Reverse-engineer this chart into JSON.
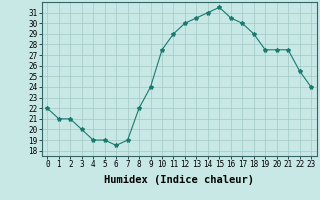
{
  "x": [
    0,
    1,
    2,
    3,
    4,
    5,
    6,
    7,
    8,
    9,
    10,
    11,
    12,
    13,
    14,
    15,
    16,
    17,
    18,
    19,
    20,
    21,
    22,
    23
  ],
  "y": [
    22,
    21,
    21,
    20,
    19,
    19,
    18.5,
    19,
    22,
    24,
    27.5,
    29,
    30,
    30.5,
    31,
    31.5,
    30.5,
    30,
    29,
    27.5,
    27.5,
    27.5,
    25.5,
    24
  ],
  "line_color": "#1a7a6e",
  "marker": "*",
  "marker_size": 3,
  "bg_color": "#c8e8e5",
  "grid_color": "#a0c8c5",
  "xlabel": "Humidex (Indice chaleur)",
  "ylim": [
    17.5,
    32
  ],
  "xlim": [
    -0.5,
    23.5
  ],
  "yticks": [
    18,
    19,
    20,
    21,
    22,
    23,
    24,
    25,
    26,
    27,
    28,
    29,
    30,
    31
  ],
  "xticks": [
    0,
    1,
    2,
    3,
    4,
    5,
    6,
    7,
    8,
    9,
    10,
    11,
    12,
    13,
    14,
    15,
    16,
    17,
    18,
    19,
    20,
    21,
    22,
    23
  ],
  "xtick_labels": [
    "0",
    "1",
    "2",
    "3",
    "4",
    "5",
    "6",
    "7",
    "8",
    "9",
    "10",
    "11",
    "12",
    "13",
    "14",
    "15",
    "16",
    "17",
    "18",
    "19",
    "20",
    "21",
    "22",
    "23"
  ],
  "tick_fontsize": 5.5,
  "xlabel_fontsize": 7.5
}
